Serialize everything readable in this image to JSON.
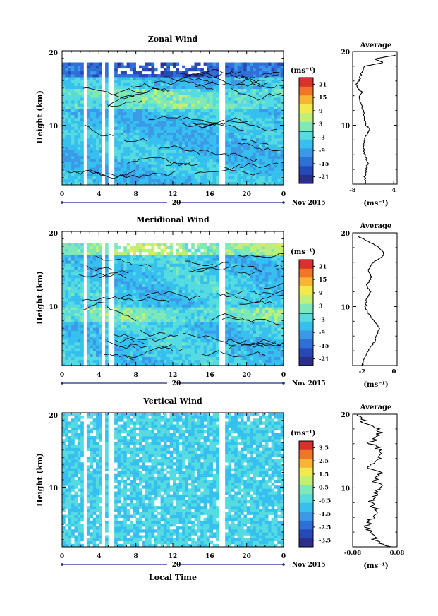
{
  "common": {
    "time_axis_label": "Local Time",
    "date_mid": "20",
    "date_month": "Nov 2015",
    "unit_label": "(ms⁻¹)"
  },
  "chart_data": [
    {
      "type": "heatmap",
      "title": "Zonal Wind",
      "ylabel": "Height (km)",
      "x_ticks": [
        "0",
        "4",
        "8",
        "12",
        "16",
        "20",
        "0"
      ],
      "xlim": [
        0,
        24
      ],
      "y_ticks": [
        "10",
        "20"
      ],
      "ylim": [
        2,
        20
      ],
      "colorbar": {
        "label": "(ms⁻¹)",
        "ticks": [
          "21",
          "15",
          "9",
          "3",
          "-3",
          "-9",
          "-15",
          "-21"
        ],
        "range": [
          -24,
          24
        ]
      },
      "profile": {
        "title": "Average",
        "xlabel": "(ms⁻¹)",
        "x_ticks": [
          "-8",
          "4"
        ],
        "y_ticks": [
          "10",
          "20"
        ],
        "xlim": [
          -8,
          5
        ],
        "points": [
          [
            -4.2,
            2
          ],
          [
            -4.5,
            3
          ],
          [
            -4.0,
            4
          ],
          [
            -3.6,
            5
          ],
          [
            -4.4,
            6
          ],
          [
            -4.8,
            7
          ],
          [
            -4.5,
            8
          ],
          [
            -3.6,
            9
          ],
          [
            -3.0,
            9.5
          ],
          [
            -4.2,
            10
          ],
          [
            -4.6,
            11
          ],
          [
            -4.8,
            12
          ],
          [
            -5.6,
            13
          ],
          [
            -6.0,
            14
          ],
          [
            -5.2,
            14.5
          ],
          [
            -6.5,
            15
          ],
          [
            -6.9,
            15.5
          ],
          [
            -6.2,
            16
          ],
          [
            -5.5,
            17
          ],
          [
            -4.5,
            18
          ],
          [
            1.0,
            18.5
          ],
          [
            -1.5,
            19
          ],
          [
            4.5,
            19.5
          ]
        ]
      }
    },
    {
      "type": "heatmap",
      "title": "Meridional Wind",
      "ylabel": "Height (km)",
      "x_ticks": [
        "0",
        "4",
        "8",
        "12",
        "16",
        "20",
        "0"
      ],
      "xlim": [
        0,
        24
      ],
      "y_ticks": [
        "10",
        "20"
      ],
      "ylim": [
        2,
        20
      ],
      "colorbar": {
        "label": "(ms⁻¹)",
        "ticks": [
          "21",
          "15",
          "9",
          "3",
          "-3",
          "-9",
          "-15",
          "-21"
        ],
        "range": [
          -24,
          24
        ]
      },
      "profile": {
        "title": "Average",
        "xlabel": "(ms⁻¹)",
        "x_ticks": [
          "-2",
          "0"
        ],
        "y_ticks": [
          "10",
          "20"
        ],
        "xlim": [
          -2.6,
          0.2
        ],
        "points": [
          [
            -2.0,
            2
          ],
          [
            -1.9,
            3
          ],
          [
            -1.6,
            4
          ],
          [
            -1.3,
            5
          ],
          [
            -1.1,
            6
          ],
          [
            -0.9,
            7
          ],
          [
            -1.2,
            8
          ],
          [
            -1.6,
            9
          ],
          [
            -1.8,
            10
          ],
          [
            -1.7,
            11
          ],
          [
            -1.5,
            12
          ],
          [
            -1.7,
            13
          ],
          [
            -1.4,
            14
          ],
          [
            -1.6,
            15
          ],
          [
            -1.3,
            16
          ],
          [
            -0.6,
            17
          ],
          [
            -0.9,
            18
          ],
          [
            -1.8,
            19
          ],
          [
            -2.3,
            19.6
          ]
        ]
      }
    },
    {
      "type": "heatmap",
      "title": "Vertical Wind",
      "ylabel": "Height (km)",
      "xlabel": "Local Time",
      "x_ticks": [
        "0",
        "4",
        "8",
        "12",
        "16",
        "20",
        "0"
      ],
      "xlim": [
        0,
        24
      ],
      "y_ticks": [
        "10",
        "20"
      ],
      "ylim": [
        2,
        20
      ],
      "colorbar": {
        "label": "(ms⁻¹)",
        "ticks": [
          "3.5",
          "2.5",
          "1.5",
          "0.5",
          "-0.5",
          "-1.5",
          "-2.5",
          "-3.5"
        ],
        "range": [
          -4,
          4
        ]
      },
      "profile": {
        "title": "Average",
        "xlabel": "(ms⁻¹)",
        "x_ticks": [
          "-0.08",
          "0.08"
        ],
        "y_ticks": [
          "10",
          "20"
        ],
        "xlim": [
          -0.08,
          0.08
        ],
        "points": [
          [
            0.05,
            2
          ],
          [
            0.0,
            3
          ],
          [
            -0.01,
            4
          ],
          [
            -0.03,
            5
          ],
          [
            -0.01,
            6
          ],
          [
            0.01,
            7
          ],
          [
            -0.02,
            8
          ],
          [
            0.0,
            9
          ],
          [
            0.02,
            10
          ],
          [
            0.0,
            11
          ],
          [
            0.02,
            12
          ],
          [
            -0.03,
            13
          ],
          [
            0.01,
            14
          ],
          [
            0.03,
            15
          ],
          [
            -0.02,
            16
          ],
          [
            0.01,
            17
          ],
          [
            0.02,
            18
          ],
          [
            -0.04,
            19
          ],
          [
            -0.06,
            20
          ]
        ]
      }
    }
  ]
}
